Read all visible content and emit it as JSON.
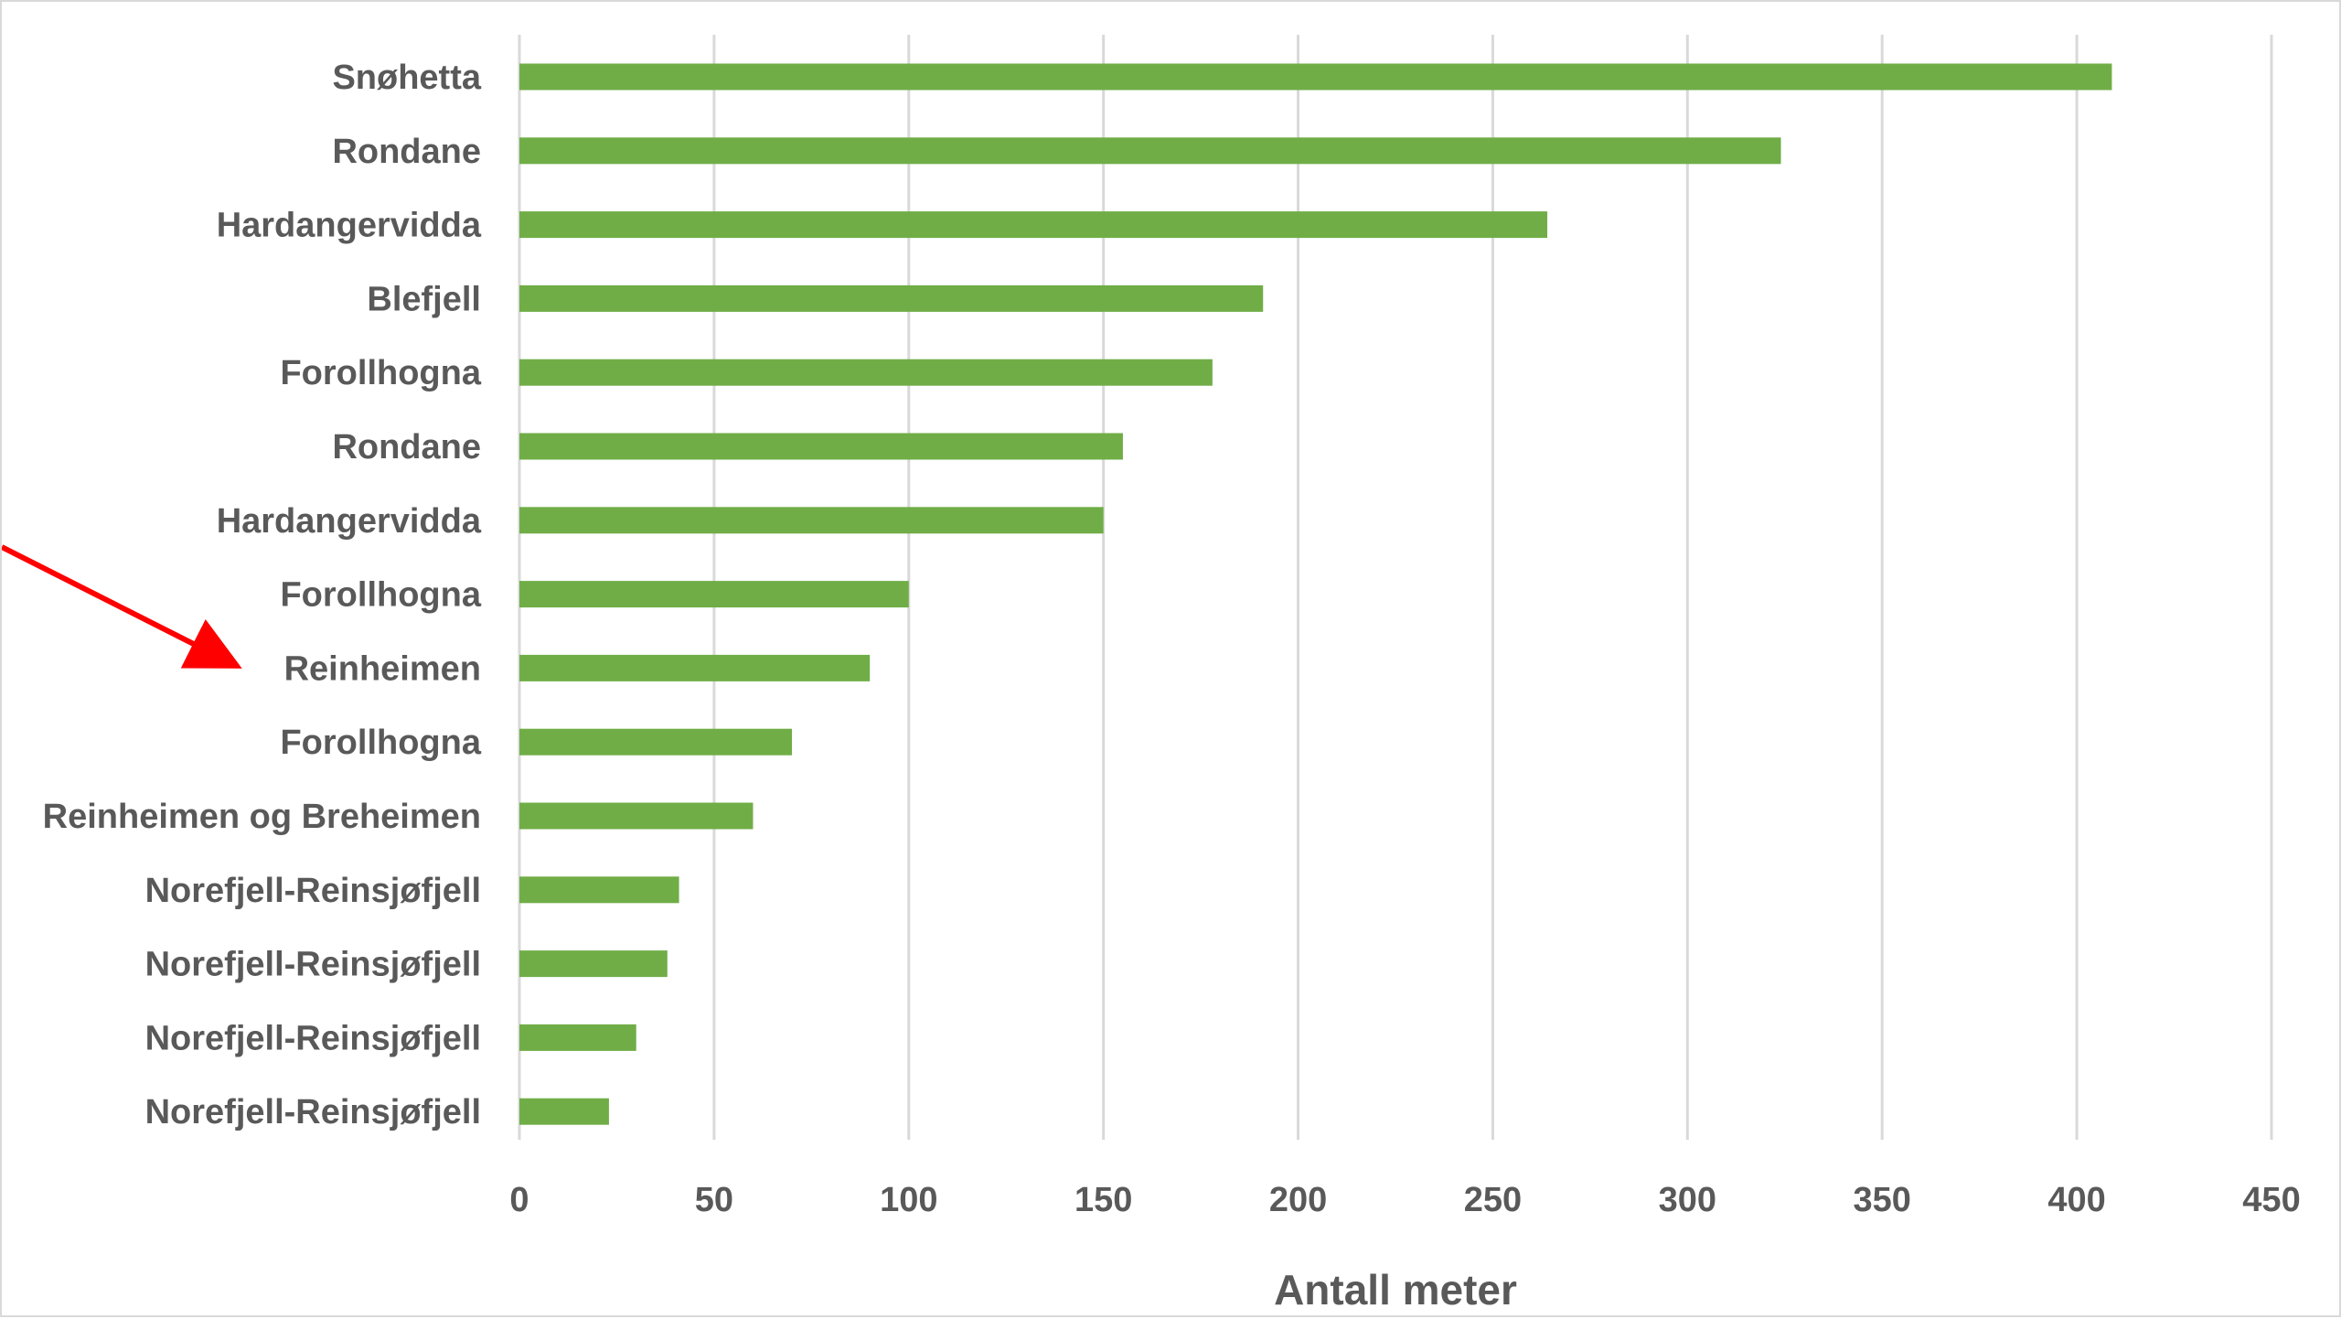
{
  "chart_data": {
    "type": "bar",
    "orientation": "horizontal",
    "title": "",
    "xlabel": "Antall meter",
    "ylabel": "",
    "xlim": [
      0,
      450
    ],
    "xticks": [
      0,
      50,
      100,
      150,
      200,
      250,
      300,
      350,
      400,
      450
    ],
    "grid": true,
    "legend": "none",
    "categories": [
      "Snøhetta",
      "Rondane",
      "Hardangervidda",
      "Blefjell",
      "Forollhogna",
      "Rondane",
      "Hardangervidda",
      "Forollhogna",
      "Reinheimen",
      "Forollhogna",
      "Reinheimen og Breheimen",
      "Norefjell-Reinsjøfjell",
      "Norefjell-Reinsjøfjell",
      "Norefjell-Reinsjøfjell",
      "Norefjell-Reinsjøfjell"
    ],
    "values": [
      409,
      324,
      264,
      191,
      178,
      155,
      150,
      100,
      90,
      70,
      60,
      41,
      38,
      30,
      23
    ],
    "bar_color": "#70AD47",
    "highlight": {
      "category": "Reinheimen",
      "marker": "red-arrow",
      "color": "#FF0000"
    }
  }
}
